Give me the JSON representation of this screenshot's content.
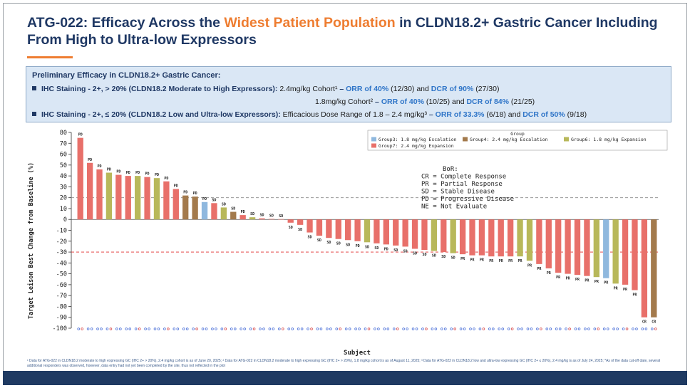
{
  "title": {
    "part1": "ATG-022: Efficacy Across the ",
    "highlight": "Widest Patient Population",
    "part2": " in CLDN18.2+ Gastric Cancer Including From High to Ultra-low Expressors"
  },
  "efficacy": {
    "heading": "Preliminary Efficacy in CLDN18.2+ Gastric Cancer:",
    "line1": {
      "label": "IHC Staining - 2+, > 20% (CLDN18.2 Moderate to High Expressors):",
      "cohort": " 2.4mg/kg Cohort¹",
      "dash": "  – ",
      "orr": "ORR of 40%",
      "orr_n": " (12/30) and ",
      "dcr": "DCR of 90%",
      "dcr_n": " (27/30)"
    },
    "line2": {
      "cohort": "1.8mg/kg Cohort²",
      "dash": "  – ",
      "orr": "ORR of 40%",
      "orr_n": " (10/25) and ",
      "dcr": "DCR of 84%",
      "dcr_n": " (21/25)"
    },
    "line3": {
      "label": "IHC Staining - 2+, ≤ 20% (CLDN18.2 Low and Ultra-low Expressors):",
      "range": " Efficacious Dose Range of 1.8 – 2.4 mg/kg³",
      "dash": " – ",
      "orr": "ORR of 33.3%",
      "orr_n": " (6/18) and ",
      "dcr": "DCR of 50%",
      "dcr_n": " (9/18)"
    }
  },
  "footnote": "¹ Data for ATG-022 in CLDN18.2 moderate to high expressing GC (IHC 2+ > 20%), 2.4 mg/kg cohort is as of June 20, 2025; ² Data for ATG-022 in CLDN18.2 moderate to high expressing GC (IHC 2+ > 20%), 1.8 mg/kg cohort is as of August 11, 2025; ³ Data for ATG-022 in CLDN18.2 low and ultra-low expressing GC (IHC 2+ ≤ 20%), 2.4 mg/kg is as of July 24, 2025; *As of the data cut-off date, several additional responders was observed, however, data entry had not yet been completed by the site, thus not reflected in the plot",
  "colors": {
    "group3": "#8fb8de",
    "group4": "#a37a4c",
    "group6": "#b8b85a",
    "group7": "#e8706a",
    "title": "#1f3864",
    "accent": "#ee7d31",
    "ref_line": "#e03030"
  },
  "chart_data": {
    "type": "bar",
    "ylabel": "Target Leison Best Change from Baseline (%)",
    "xlabel": "Subject",
    "ylim": [
      -100,
      80
    ],
    "yticks": [
      80,
      70,
      60,
      50,
      40,
      30,
      20,
      10,
      0,
      -10,
      -20,
      -30,
      -40,
      -50,
      -60,
      -70,
      -80,
      -90,
      -100
    ],
    "reference_lines": [
      20,
      -30
    ],
    "legend": {
      "title": "Group",
      "position": "top-right",
      "items": [
        {
          "key": "g3",
          "label": "Group3: 1.8 mg/kg Escalation"
        },
        {
          "key": "g4",
          "label": "Group4: 2.4 mg/kg Escalation"
        },
        {
          "key": "g6",
          "label": "Group6: 1.8 mg/kg Expansion"
        },
        {
          "key": "g7",
          "label": "Group7: 2.4 mg/kg Expansion"
        }
      ]
    },
    "bor_legend": [
      "BoR:",
      "CR = Complete Response",
      "PR = Partial Response",
      "SD = Stable Disease",
      "PD = Progressive Disease",
      "NE = Not Evaluate"
    ],
    "bars": [
      {
        "value": 75,
        "group": "g7",
        "bor": "PD"
      },
      {
        "value": 52,
        "group": "g7",
        "bor": "PD"
      },
      {
        "value": 46,
        "group": "g7",
        "bor": "PD"
      },
      {
        "value": 43,
        "group": "g6",
        "bor": "PD"
      },
      {
        "value": 41,
        "group": "g7",
        "bor": "PD"
      },
      {
        "value": 40,
        "group": "g7",
        "bor": "PD"
      },
      {
        "value": 40,
        "group": "g6",
        "bor": "PD"
      },
      {
        "value": 39,
        "group": "g7",
        "bor": "PD"
      },
      {
        "value": 38,
        "group": "g6",
        "bor": "PD"
      },
      {
        "value": 35,
        "group": "g7",
        "bor": "PD"
      },
      {
        "value": 28,
        "group": "g7",
        "bor": "PD"
      },
      {
        "value": 22,
        "group": "g4",
        "bor": "PD"
      },
      {
        "value": 21,
        "group": "g4",
        "bor": "PD"
      },
      {
        "value": 16,
        "group": "g3",
        "bor": "PD"
      },
      {
        "value": 15,
        "group": "g7",
        "bor": "SD"
      },
      {
        "value": 11,
        "group": "g6",
        "bor": "SD"
      },
      {
        "value": 7,
        "group": "g4",
        "bor": "SD"
      },
      {
        "value": 4,
        "group": "g7",
        "bor": "PD"
      },
      {
        "value": 2,
        "group": "g6",
        "bor": "SD"
      },
      {
        "value": 1,
        "group": "g7",
        "bor": "SD"
      },
      {
        "value": 0.5,
        "group": "g7",
        "bor": "SD"
      },
      {
        "value": 0.3,
        "group": "g7",
        "bor": "SD"
      },
      {
        "value": -3,
        "group": "g7",
        "bor": "SD"
      },
      {
        "value": -5,
        "group": "g7",
        "bor": "SD"
      },
      {
        "value": -12,
        "group": "g7",
        "bor": "SD"
      },
      {
        "value": -15,
        "group": "g7",
        "bor": "SD"
      },
      {
        "value": -17,
        "group": "g7",
        "bor": "SD"
      },
      {
        "value": -18,
        "group": "g7",
        "bor": "SD"
      },
      {
        "value": -19,
        "group": "g7",
        "bor": "SD"
      },
      {
        "value": -20,
        "group": "g7",
        "bor": "PD"
      },
      {
        "value": -21,
        "group": "g6",
        "bor": "SD"
      },
      {
        "value": -22,
        "group": "g7",
        "bor": "SD"
      },
      {
        "value": -23,
        "group": "g7",
        "bor": "PD"
      },
      {
        "value": -24,
        "group": "g7",
        "bor": "SD"
      },
      {
        "value": -25,
        "group": "g7",
        "bor": "SD"
      },
      {
        "value": -27,
        "group": "g7",
        "bor": "SD"
      },
      {
        "value": -28,
        "group": "g7",
        "bor": "SD"
      },
      {
        "value": -29,
        "group": "g6",
        "bor": "SD"
      },
      {
        "value": -30,
        "group": "g7",
        "bor": "SD"
      },
      {
        "value": -31,
        "group": "g6",
        "bor": "SD"
      },
      {
        "value": -32,
        "group": "g7",
        "bor": "PR"
      },
      {
        "value": -33,
        "group": "g7",
        "bor": "PR"
      },
      {
        "value": -33,
        "group": "g7",
        "bor": "PR"
      },
      {
        "value": -34,
        "group": "g7",
        "bor": "PR"
      },
      {
        "value": -34,
        "group": "g7",
        "bor": "PR"
      },
      {
        "value": -34,
        "group": "g7",
        "bor": "PR"
      },
      {
        "value": -34,
        "group": "g6",
        "bor": "PR"
      },
      {
        "value": -38,
        "group": "g6",
        "bor": "PR"
      },
      {
        "value": -41,
        "group": "g7",
        "bor": "PR"
      },
      {
        "value": -45,
        "group": "g7",
        "bor": "PR"
      },
      {
        "value": -49,
        "group": "g7",
        "bor": "PR"
      },
      {
        "value": -50,
        "group": "g7",
        "bor": "PR"
      },
      {
        "value": -51,
        "group": "g7",
        "bor": "PR"
      },
      {
        "value": -52,
        "group": "g7",
        "bor": "PR"
      },
      {
        "value": -53,
        "group": "g6",
        "bor": "PR"
      },
      {
        "value": -54,
        "group": "g3",
        "bor": "PR"
      },
      {
        "value": -59,
        "group": "g6",
        "bor": "PR"
      },
      {
        "value": -60,
        "group": "g7",
        "bor": "PR"
      },
      {
        "value": -65,
        "group": "g7",
        "bor": "PR"
      },
      {
        "value": -90,
        "group": "g7",
        "bor": "CR"
      },
      {
        "value": -90,
        "group": "g4",
        "bor": "CR"
      }
    ]
  }
}
